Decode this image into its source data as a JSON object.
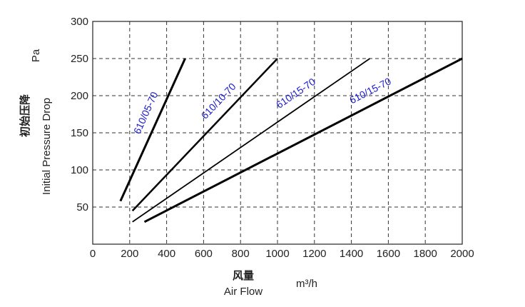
{
  "chart_data": {
    "type": "line",
    "title": "",
    "xlabel_cn": "风量",
    "xlabel": "Air Flow",
    "xunit": "m³/h",
    "ylabel_unit": "Pa",
    "ylabel_cn": "初始压降",
    "ylabel": "Initial Pressure Drop",
    "xlim": [
      0,
      2000
    ],
    "ylim": [
      0,
      300
    ],
    "xticks": [
      0,
      200,
      400,
      600,
      800,
      1000,
      1200,
      1400,
      1600,
      1800,
      2000
    ],
    "yticks": [
      50,
      100,
      150,
      200,
      250,
      300
    ],
    "grid": true,
    "series": [
      {
        "name": "610/05-70",
        "x": [
          150,
          500
        ],
        "y": [
          58,
          250
        ],
        "width": 3
      },
      {
        "name": "610/10-70",
        "x": [
          215,
          1000
        ],
        "y": [
          45,
          250
        ],
        "width": 2.5
      },
      {
        "name": "610/15-70",
        "x": [
          215,
          1500
        ],
        "y": [
          30,
          250
        ],
        "width": 1.8
      },
      {
        "name": "610/15-70",
        "x": [
          280,
          2000
        ],
        "y": [
          30,
          250
        ],
        "width": 3
      }
    ],
    "line_color": "#000000",
    "label_color": "#1a1ad0"
  }
}
